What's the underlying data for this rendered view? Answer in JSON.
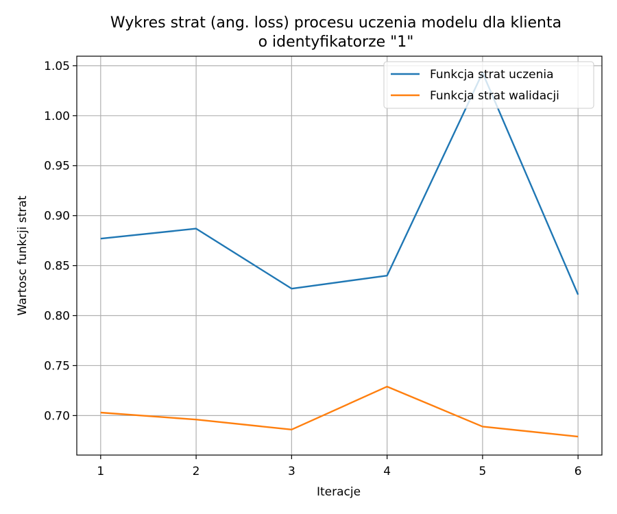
{
  "chart_data": {
    "type": "line",
    "title_lines": [
      "Wykres strat (ang. loss) procesu uczenia modelu dla klienta",
      "o identyfikatorze \"1\""
    ],
    "xlabel": "Iteracje",
    "ylabel": "Wartosc funkcji strat",
    "x": [
      1,
      2,
      3,
      4,
      5,
      6
    ],
    "xticks": [
      "1",
      "2",
      "3",
      "4",
      "5",
      "6"
    ],
    "xlim": [
      0.75,
      6.25
    ],
    "yticks": [
      "0.70",
      "0.75",
      "0.80",
      "0.85",
      "0.90",
      "0.95",
      "1.00",
      "1.05"
    ],
    "ylim": [
      0.6605,
      1.0595
    ],
    "grid": true,
    "legend_position": "top-right",
    "series": [
      {
        "name": "Funkcja strat uczenia",
        "color": "#1f77b4",
        "values": [
          0.877,
          0.887,
          0.827,
          0.84,
          1.043,
          0.821
        ]
      },
      {
        "name": "Funkcja strat walidacji",
        "color": "#ff7f0e",
        "values": [
          0.703,
          0.696,
          0.686,
          0.729,
          0.689,
          0.679
        ]
      }
    ]
  }
}
